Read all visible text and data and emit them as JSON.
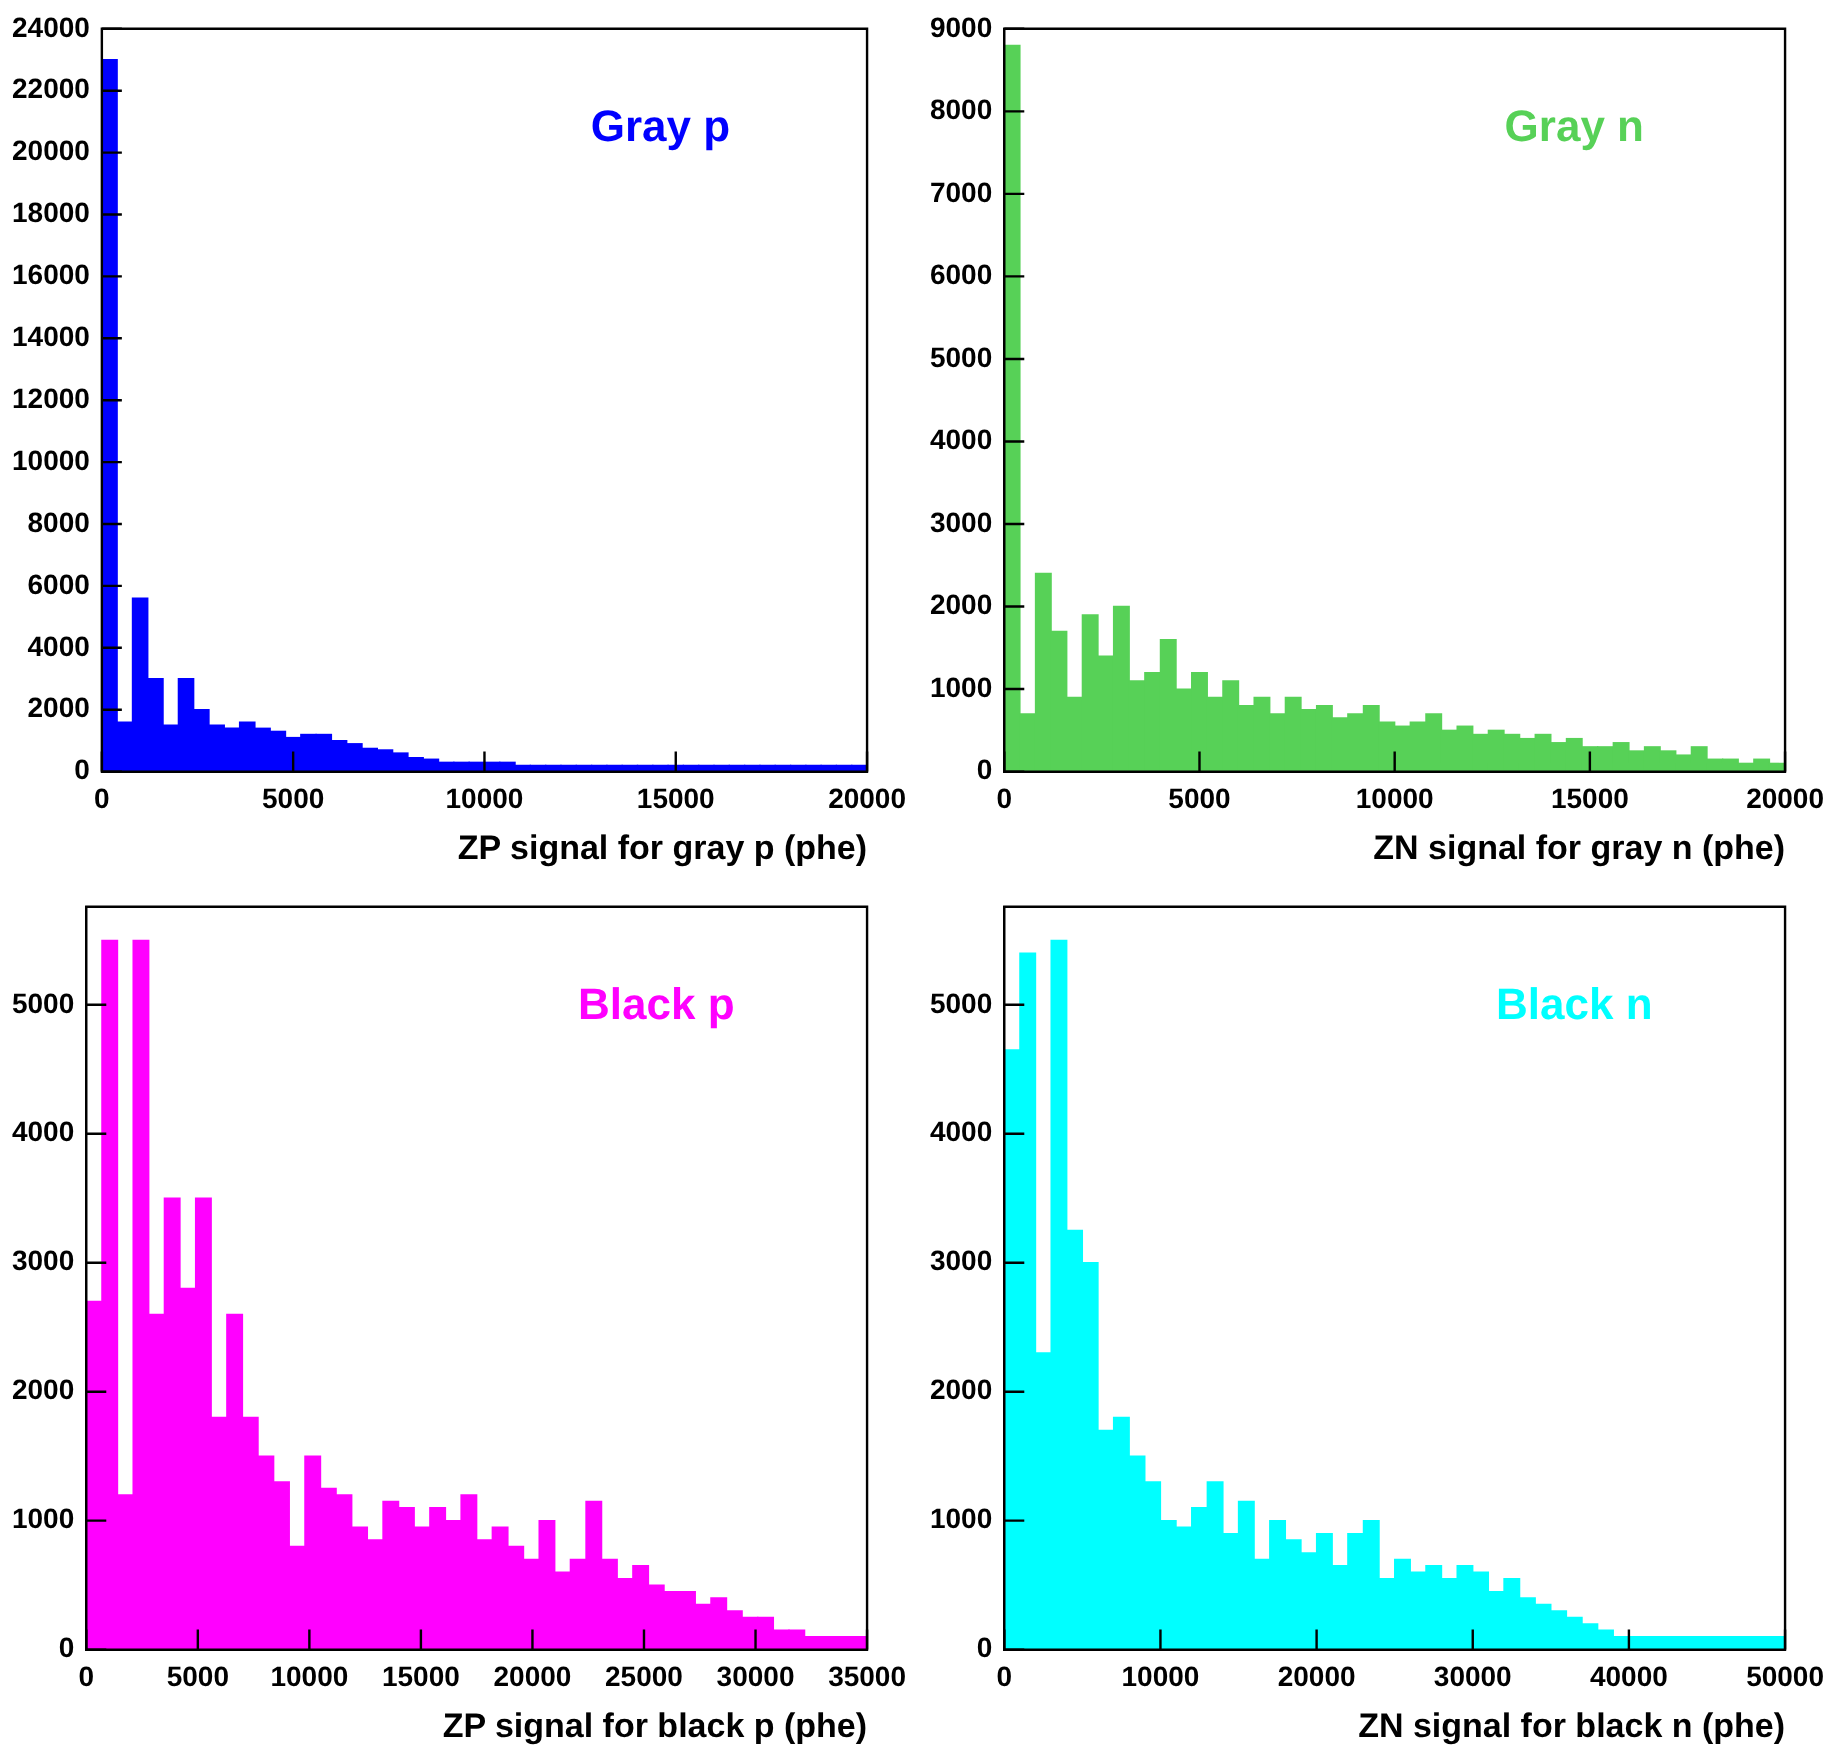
{
  "chart_data": [
    {
      "type": "histogram",
      "xlabel": "ZP signal for gray p (phe)",
      "xlim": [
        0,
        20000
      ],
      "xticks": [
        0,
        5000,
        10000,
        15000,
        20000
      ],
      "ylim": [
        0,
        24000
      ],
      "yticks": [
        0,
        2000,
        4000,
        6000,
        8000,
        10000,
        12000,
        14000,
        16000,
        18000,
        20000,
        22000,
        24000
      ],
      "grid": false,
      "bins": [
        0,
        400,
        800,
        1200,
        1600,
        2000,
        2400,
        2800,
        3200,
        3600,
        4000,
        4400,
        4800,
        5200,
        5600,
        6000,
        6400,
        6800,
        7200,
        7600,
        8000,
        8400,
        8800,
        9200,
        9600,
        10000,
        10400,
        10800,
        11200,
        11600,
        12000,
        12400,
        12800,
        13200,
        13600,
        14000,
        14400,
        14800,
        15200,
        15600,
        16000,
        16400,
        16800,
        17200,
        17600,
        18000,
        18400,
        18800,
        19200,
        19600,
        20000
      ],
      "series": [
        {
          "name": "Gray p",
          "color": "#0000ff",
          "values": [
            23000,
            1600,
            5600,
            3000,
            1500,
            3000,
            2000,
            1500,
            1400,
            1600,
            1400,
            1300,
            1100,
            1200,
            1200,
            1000,
            900,
            750,
            700,
            600,
            450,
            400,
            300,
            300,
            300,
            300,
            300,
            200,
            200,
            200,
            200,
            200,
            200,
            200,
            200,
            200,
            200,
            200,
            200,
            200,
            200,
            200,
            200,
            200,
            200,
            200,
            200,
            200,
            200,
            200
          ]
        }
      ]
    },
    {
      "type": "histogram",
      "xlabel": "ZN signal for gray n (phe)",
      "xlim": [
        0,
        20000
      ],
      "xticks": [
        0,
        5000,
        10000,
        15000,
        20000
      ],
      "ylim": [
        0,
        9000
      ],
      "yticks": [
        0,
        1000,
        2000,
        3000,
        4000,
        5000,
        6000,
        7000,
        8000,
        9000
      ],
      "grid": false,
      "bins": [
        0,
        400,
        800,
        1200,
        1600,
        2000,
        2400,
        2800,
        3200,
        3600,
        4000,
        4400,
        4800,
        5200,
        5600,
        6000,
        6400,
        6800,
        7200,
        7600,
        8000,
        8400,
        8800,
        9200,
        9600,
        10000,
        10400,
        10800,
        11200,
        11600,
        12000,
        12400,
        12800,
        13200,
        13600,
        14000,
        14400,
        14800,
        15200,
        15600,
        16000,
        16400,
        16800,
        17200,
        17600,
        18000,
        18400,
        18800,
        19200,
        19600,
        20000
      ],
      "series": [
        {
          "name": "Gray n",
          "color": "#57d157",
          "values": [
            8800,
            700,
            2400,
            1700,
            900,
            1900,
            1400,
            2000,
            1100,
            1200,
            1600,
            1000,
            1200,
            900,
            1100,
            800,
            900,
            700,
            900,
            750,
            800,
            650,
            700,
            800,
            600,
            550,
            600,
            700,
            500,
            550,
            450,
            500,
            450,
            400,
            450,
            350,
            400,
            300,
            300,
            350,
            250,
            300,
            250,
            200,
            300,
            150,
            150,
            100,
            150,
            100
          ]
        }
      ]
    },
    {
      "type": "histogram",
      "xlabel": "ZP signal for black p (phe)",
      "xlim": [
        0,
        35000
      ],
      "xticks": [
        0,
        5000,
        10000,
        15000,
        20000,
        25000,
        30000,
        35000
      ],
      "ylim": [
        0,
        5760
      ],
      "yticks": [
        0,
        1000,
        2000,
        3000,
        4000,
        5000
      ],
      "grid": false,
      "bins": [
        0,
        700,
        1400,
        2100,
        2800,
        3500,
        4200,
        4900,
        5600,
        6300,
        7000,
        7700,
        8400,
        9100,
        9800,
        10500,
        11200,
        11900,
        12600,
        13300,
        14000,
        14700,
        15400,
        16100,
        16800,
        17500,
        18200,
        18900,
        19600,
        20300,
        21000,
        21700,
        22400,
        23100,
        23800,
        24500,
        25200,
        25900,
        26600,
        27300,
        28000,
        28700,
        29400,
        30100,
        30800,
        31500,
        32200,
        32900,
        33600,
        34300,
        35000
      ],
      "series": [
        {
          "name": "Black p",
          "color": "#ff00ff",
          "values": [
            2700,
            5500,
            1200,
            5500,
            2600,
            3500,
            2800,
            3500,
            1800,
            2600,
            1800,
            1500,
            1300,
            800,
            1500,
            1250,
            1200,
            950,
            850,
            1150,
            1100,
            950,
            1100,
            1000,
            1200,
            850,
            950,
            800,
            700,
            1000,
            600,
            700,
            1150,
            700,
            550,
            650,
            500,
            450,
            450,
            350,
            400,
            300,
            250,
            250,
            150,
            150,
            100,
            100,
            100,
            100
          ]
        }
      ]
    },
    {
      "type": "histogram",
      "xlabel": "ZN signal for black n (phe)",
      "xlim": [
        0,
        50000
      ],
      "xticks": [
        0,
        10000,
        20000,
        30000,
        40000,
        50000
      ],
      "ylim": [
        0,
        5760
      ],
      "yticks": [
        0,
        1000,
        2000,
        3000,
        4000,
        5000
      ],
      "grid": false,
      "bins": [
        0,
        1000,
        2000,
        3000,
        4000,
        5000,
        6000,
        7000,
        8000,
        9000,
        10000,
        11000,
        12000,
        13000,
        14000,
        15000,
        16000,
        17000,
        18000,
        19000,
        20000,
        21000,
        22000,
        23000,
        24000,
        25000,
        26000,
        27000,
        28000,
        29000,
        30000,
        31000,
        32000,
        33000,
        34000,
        35000,
        36000,
        37000,
        38000,
        39000,
        40000,
        41000,
        42000,
        43000,
        44000,
        45000,
        46000,
        47000,
        48000,
        49000,
        50000
      ],
      "series": [
        {
          "name": "Black n",
          "color": "#00ffff",
          "values": [
            4650,
            5400,
            2300,
            5500,
            3250,
            3000,
            1700,
            1800,
            1500,
            1300,
            1000,
            950,
            1100,
            1300,
            900,
            1150,
            700,
            1000,
            850,
            750,
            900,
            650,
            900,
            1000,
            550,
            700,
            600,
            650,
            550,
            650,
            600,
            450,
            550,
            400,
            350,
            300,
            250,
            200,
            150,
            100,
            100,
            100,
            100,
            100,
            100,
            100,
            100,
            100,
            100,
            100
          ]
        }
      ]
    }
  ]
}
